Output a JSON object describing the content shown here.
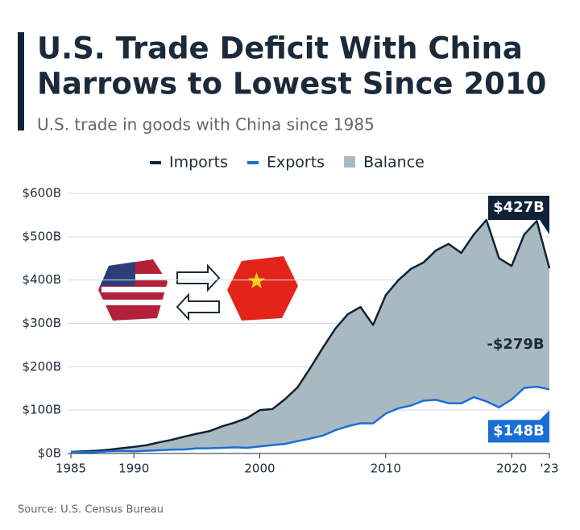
{
  "chart_data": {
    "type": "area",
    "title": [
      "U.S. Trade Deficit With China",
      "Narrows to Lowest Since 2010"
    ],
    "subtitle": "U.S. trade in goods with China since 1985",
    "source": "Source: U.S. Census Bureau",
    "x": [
      1985,
      1986,
      1987,
      1988,
      1989,
      1990,
      1991,
      1992,
      1993,
      1994,
      1995,
      1996,
      1997,
      1998,
      1999,
      2000,
      2001,
      2002,
      2003,
      2004,
      2005,
      2006,
      2007,
      2008,
      2009,
      2010,
      2011,
      2012,
      2013,
      2014,
      2015,
      2016,
      2017,
      2018,
      2019,
      2020,
      2021,
      2022,
      2023
    ],
    "series": [
      {
        "name": "Imports",
        "color": "#0f2236",
        "values": [
          3.9,
          4.8,
          6.3,
          8.5,
          12.0,
          15.2,
          19.0,
          25.7,
          31.5,
          38.8,
          45.5,
          51.5,
          62.6,
          71.2,
          81.8,
          100.0,
          102.3,
          125.2,
          152.4,
          196.7,
          243.5,
          287.8,
          321.4,
          337.8,
          296.4,
          364.9,
          399.4,
          425.6,
          440.4,
          468.5,
          483.2,
          462.4,
          505.2,
          538.5,
          450.4,
          432.5,
          504.9,
          536.3,
          427.2
        ]
      },
      {
        "name": "Exports",
        "color": "#1a6fd6",
        "values": [
          3.9,
          3.1,
          3.5,
          5.0,
          5.8,
          4.8,
          6.3,
          7.4,
          8.8,
          9.3,
          11.8,
          12.0,
          12.9,
          14.2,
          13.1,
          16.2,
          19.2,
          22.1,
          28.4,
          34.4,
          41.2,
          53.7,
          62.9,
          69.7,
          69.5,
          91.9,
          104.1,
          110.5,
          121.7,
          123.7,
          115.9,
          115.6,
          129.8,
          120.1,
          106.4,
          124.5,
          151.1,
          154.0,
          147.8
        ]
      }
    ],
    "balance": {
      "name": "Balance",
      "color": "#a9b9c1"
    },
    "annotations": [
      {
        "label": "$427B",
        "value": 427.2,
        "color": "#0f2236"
      },
      {
        "label": "-$279B",
        "value": -279.4
      },
      {
        "label": "$148B",
        "value": 147.8,
        "color": "#1a6fd6"
      }
    ],
    "xlim": [
      1985,
      2023
    ],
    "xticks": [
      1985,
      1990,
      2000,
      2010,
      2020,
      {
        "value": 2023,
        "label": "'23"
      }
    ],
    "ylim": [
      0,
      600
    ],
    "yticks": [
      {
        "value": 0,
        "label": "$0B"
      },
      {
        "value": 100,
        "label": "$100B"
      },
      {
        "value": 200,
        "label": "$200B"
      },
      {
        "value": 300,
        "label": "$300B"
      },
      {
        "value": 400,
        "label": "$400B"
      },
      {
        "value": 500,
        "label": "$500B"
      },
      {
        "value": 600,
        "label": "$600B"
      }
    ],
    "grid": true
  }
}
